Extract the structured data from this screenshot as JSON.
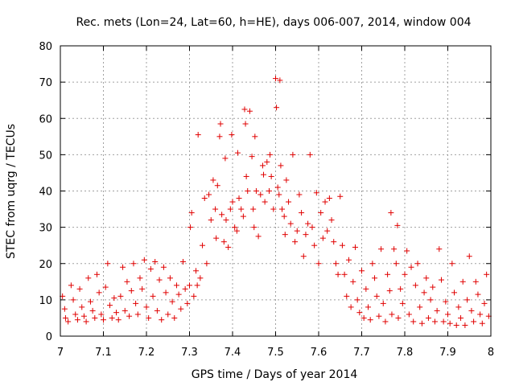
{
  "chart_data": {
    "type": "scatter",
    "title": "Rec. mets (Lon=24, Lat=60, h=HE), days 006-007, 2014, window 004",
    "xlabel": "GPS time / Days of year 2014",
    "ylabel": "STEC from uqrg / TECUs",
    "xlim": [
      7,
      8
    ],
    "ylim": [
      0,
      80
    ],
    "xticks": [
      "7",
      "7.1",
      "7.2",
      "7.3",
      "7.4",
      "7.5",
      "7.6",
      "7.7",
      "7.8",
      "7.9",
      "8"
    ],
    "yticks": [
      "0",
      "10",
      "20",
      "30",
      "40",
      "50",
      "60",
      "70",
      "80"
    ],
    "grid": true,
    "marker": "plus",
    "color": "#e00000",
    "series": [
      {
        "name": "STEC",
        "points": [
          [
            7.005,
            11
          ],
          [
            7.01,
            7.5
          ],
          [
            7.012,
            5
          ],
          [
            7.018,
            4
          ],
          [
            7.025,
            14
          ],
          [
            7.03,
            10
          ],
          [
            7.035,
            6
          ],
          [
            7.04,
            4.5
          ],
          [
            7.045,
            13
          ],
          [
            7.05,
            8
          ],
          [
            7.055,
            5.5
          ],
          [
            7.06,
            4
          ],
          [
            7.065,
            16
          ],
          [
            7.07,
            9.5
          ],
          [
            7.075,
            7
          ],
          [
            7.08,
            5
          ],
          [
            7.085,
            17
          ],
          [
            7.09,
            12
          ],
          [
            7.095,
            6
          ],
          [
            7.1,
            4.5
          ],
          [
            7.105,
            13.5
          ],
          [
            7.11,
            20
          ],
          [
            7.115,
            8.5
          ],
          [
            7.12,
            5
          ],
          [
            7.125,
            10.5
          ],
          [
            7.13,
            6.5
          ],
          [
            7.135,
            4.5
          ],
          [
            7.14,
            11
          ],
          [
            7.145,
            19
          ],
          [
            7.15,
            7
          ],
          [
            7.155,
            15
          ],
          [
            7.16,
            5.5
          ],
          [
            7.165,
            12.5
          ],
          [
            7.17,
            20
          ],
          [
            7.175,
            9
          ],
          [
            7.18,
            6
          ],
          [
            7.185,
            16
          ],
          [
            7.19,
            13
          ],
          [
            7.195,
            21
          ],
          [
            7.2,
            8
          ],
          [
            7.205,
            5
          ],
          [
            7.21,
            18.5
          ],
          [
            7.215,
            11
          ],
          [
            7.22,
            20.5
          ],
          [
            7.225,
            7
          ],
          [
            7.23,
            15.5
          ],
          [
            7.235,
            4.5
          ],
          [
            7.24,
            19
          ],
          [
            7.245,
            12
          ],
          [
            7.25,
            6
          ],
          [
            7.255,
            16
          ],
          [
            7.26,
            9.5
          ],
          [
            7.265,
            5
          ],
          [
            7.27,
            14
          ],
          [
            7.275,
            11.5
          ],
          [
            7.28,
            7.5
          ],
          [
            7.285,
            20.5
          ],
          [
            7.29,
            13
          ],
          [
            7.295,
            9
          ],
          [
            7.3,
            14
          ],
          [
            7.302,
            30
          ],
          [
            7.305,
            34
          ],
          [
            7.31,
            11
          ],
          [
            7.315,
            18
          ],
          [
            7.318,
            14
          ],
          [
            7.32,
            55.5
          ],
          [
            7.325,
            16
          ],
          [
            7.33,
            25
          ],
          [
            7.335,
            38
          ],
          [
            7.34,
            20
          ],
          [
            7.345,
            39
          ],
          [
            7.35,
            32
          ],
          [
            7.355,
            43
          ],
          [
            7.36,
            35
          ],
          [
            7.362,
            27
          ],
          [
            7.365,
            41.5
          ],
          [
            7.37,
            55
          ],
          [
            7.372,
            58.5
          ],
          [
            7.375,
            33.5
          ],
          [
            7.38,
            26
          ],
          [
            7.383,
            49
          ],
          [
            7.385,
            32
          ],
          [
            7.39,
            24.5
          ],
          [
            7.395,
            35
          ],
          [
            7.398,
            55.5
          ],
          [
            7.4,
            37
          ],
          [
            7.405,
            30
          ],
          [
            7.41,
            29
          ],
          [
            7.412,
            50.5
          ],
          [
            7.415,
            38
          ],
          [
            7.42,
            35
          ],
          [
            7.425,
            33
          ],
          [
            7.428,
            62.5
          ],
          [
            7.43,
            58.5
          ],
          [
            7.432,
            44
          ],
          [
            7.435,
            40
          ],
          [
            7.44,
            62
          ],
          [
            7.445,
            49.5
          ],
          [
            7.448,
            35
          ],
          [
            7.45,
            30
          ],
          [
            7.452,
            55
          ],
          [
            7.455,
            40
          ],
          [
            7.46,
            27.5
          ],
          [
            7.465,
            39
          ],
          [
            7.47,
            47
          ],
          [
            7.472,
            44.5
          ],
          [
            7.475,
            37
          ],
          [
            7.48,
            48
          ],
          [
            7.485,
            40
          ],
          [
            7.487,
            50
          ],
          [
            7.49,
            44
          ],
          [
            7.495,
            35
          ],
          [
            7.5,
            71
          ],
          [
            7.502,
            63
          ],
          [
            7.505,
            41
          ],
          [
            7.508,
            39
          ],
          [
            7.51,
            70.5
          ],
          [
            7.512,
            47
          ],
          [
            7.515,
            35
          ],
          [
            7.52,
            33
          ],
          [
            7.522,
            28
          ],
          [
            7.525,
            43
          ],
          [
            7.53,
            37
          ],
          [
            7.535,
            31
          ],
          [
            7.54,
            50
          ],
          [
            7.545,
            26
          ],
          [
            7.55,
            29
          ],
          [
            7.555,
            39
          ],
          [
            7.56,
            34
          ],
          [
            7.565,
            22
          ],
          [
            7.57,
            28
          ],
          [
            7.575,
            31
          ],
          [
            7.58,
            50
          ],
          [
            7.585,
            30
          ],
          [
            7.59,
            25
          ],
          [
            7.595,
            39.5
          ],
          [
            7.6,
            20
          ],
          [
            7.605,
            34
          ],
          [
            7.61,
            27
          ],
          [
            7.615,
            37
          ],
          [
            7.62,
            29
          ],
          [
            7.625,
            38
          ],
          [
            7.63,
            32
          ],
          [
            7.635,
            26
          ],
          [
            7.64,
            20
          ],
          [
            7.645,
            17
          ],
          [
            7.65,
            38.5
          ],
          [
            7.655,
            25
          ],
          [
            7.66,
            17
          ],
          [
            7.665,
            11
          ],
          [
            7.67,
            21
          ],
          [
            7.675,
            8
          ],
          [
            7.68,
            15
          ],
          [
            7.685,
            24.5
          ],
          [
            7.69,
            10
          ],
          [
            7.695,
            6.5
          ],
          [
            7.7,
            18
          ],
          [
            7.705,
            5
          ],
          [
            7.71,
            13
          ],
          [
            7.715,
            8
          ],
          [
            7.72,
            4.5
          ],
          [
            7.725,
            20
          ],
          [
            7.73,
            16
          ],
          [
            7.735,
            11
          ],
          [
            7.74,
            5.5
          ],
          [
            7.745,
            24
          ],
          [
            7.75,
            9
          ],
          [
            7.755,
            4
          ],
          [
            7.76,
            17
          ],
          [
            7.765,
            12.5
          ],
          [
            7.768,
            34
          ],
          [
            7.77,
            6
          ],
          [
            7.775,
            24
          ],
          [
            7.78,
            20
          ],
          [
            7.783,
            30.5
          ],
          [
            7.785,
            5
          ],
          [
            7.79,
            13
          ],
          [
            7.795,
            9
          ],
          [
            7.8,
            17
          ],
          [
            7.805,
            23.5
          ],
          [
            7.81,
            6
          ],
          [
            7.815,
            19
          ],
          [
            7.82,
            4
          ],
          [
            7.825,
            14
          ],
          [
            7.83,
            20
          ],
          [
            7.835,
            8
          ],
          [
            7.84,
            3.5
          ],
          [
            7.845,
            12
          ],
          [
            7.85,
            16
          ],
          [
            7.855,
            5
          ],
          [
            7.86,
            10
          ],
          [
            7.865,
            13.5
          ],
          [
            7.87,
            4
          ],
          [
            7.875,
            7
          ],
          [
            7.88,
            24
          ],
          [
            7.885,
            15.5
          ],
          [
            7.89,
            4
          ],
          [
            7.895,
            9.5
          ],
          [
            7.9,
            6
          ],
          [
            7.905,
            3.5
          ],
          [
            7.91,
            20
          ],
          [
            7.915,
            12
          ],
          [
            7.92,
            3
          ],
          [
            7.925,
            8
          ],
          [
            7.93,
            5
          ],
          [
            7.935,
            15
          ],
          [
            7.94,
            3
          ],
          [
            7.945,
            10
          ],
          [
            7.95,
            22
          ],
          [
            7.955,
            7
          ],
          [
            7.96,
            4
          ],
          [
            7.965,
            15
          ],
          [
            7.97,
            11.5
          ],
          [
            7.975,
            6
          ],
          [
            7.98,
            3.5
          ],
          [
            7.985,
            9
          ],
          [
            7.99,
            17
          ],
          [
            7.995,
            5.5
          ]
        ]
      }
    ]
  }
}
